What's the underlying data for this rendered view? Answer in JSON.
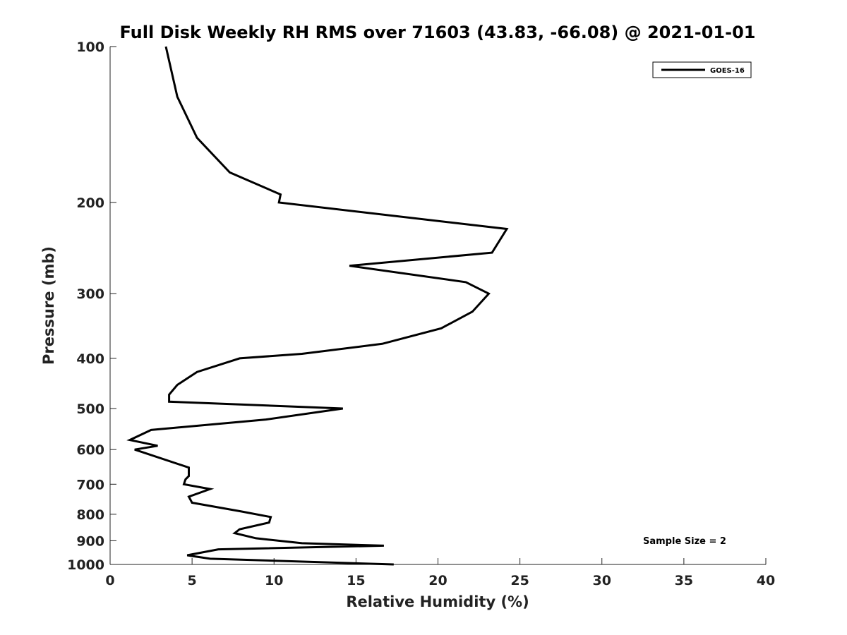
{
  "chart_data": {
    "type": "line",
    "title": "Full Disk Weekly RH RMS over 71603 (43.83, -66.08) @ 2021-01-01",
    "xlabel": "Relative Humidity (%)",
    "ylabel": "Pressure (mb)",
    "xlim": [
      0,
      40
    ],
    "ylim": [
      1000,
      100
    ],
    "yscale": "log",
    "xticks": [
      "0",
      "5",
      "10",
      "15",
      "20",
      "25",
      "30",
      "35",
      "40"
    ],
    "yticks": [
      "100",
      "200",
      "300",
      "400",
      "500",
      "600",
      "700",
      "800",
      "900",
      "1000"
    ],
    "grid": false,
    "legend_position": "top-right",
    "series": [
      {
        "name": "GOES-16",
        "color": "#000000",
        "points": [
          [
            3.4,
            100
          ],
          [
            4.1,
            125
          ],
          [
            5.3,
            150
          ],
          [
            7.3,
            175
          ],
          [
            10.4,
            193
          ],
          [
            10.3,
            200
          ],
          [
            24.2,
            225
          ],
          [
            23.3,
            250
          ],
          [
            14.6,
            265
          ],
          [
            21.7,
            285
          ],
          [
            23.1,
            300
          ],
          [
            22.1,
            325
          ],
          [
            20.2,
            350
          ],
          [
            16.6,
            375
          ],
          [
            11.7,
            392
          ],
          [
            7.9,
            400
          ],
          [
            5.3,
            425
          ],
          [
            4.1,
            450
          ],
          [
            3.6,
            470
          ],
          [
            3.6,
            485
          ],
          [
            14.2,
            500
          ],
          [
            9.5,
            525
          ],
          [
            2.5,
            550
          ],
          [
            1.2,
            575
          ],
          [
            2.9,
            590
          ],
          [
            1.5,
            600
          ],
          [
            4.8,
            650
          ],
          [
            4.8,
            675
          ],
          [
            4.6,
            685
          ],
          [
            4.5,
            700
          ],
          [
            6.1,
            715
          ],
          [
            4.8,
            740
          ],
          [
            5.0,
            760
          ],
          [
            8.0,
            790
          ],
          [
            9.8,
            810
          ],
          [
            9.7,
            830
          ],
          [
            7.9,
            855
          ],
          [
            7.6,
            870
          ],
          [
            8.9,
            890
          ],
          [
            11.7,
            910
          ],
          [
            16.7,
            920
          ],
          [
            6.6,
            935
          ],
          [
            4.7,
            960
          ],
          [
            6.1,
            975
          ],
          [
            17.3,
            1000
          ]
        ]
      }
    ],
    "annotations": [
      "Sample Size = 2"
    ]
  }
}
